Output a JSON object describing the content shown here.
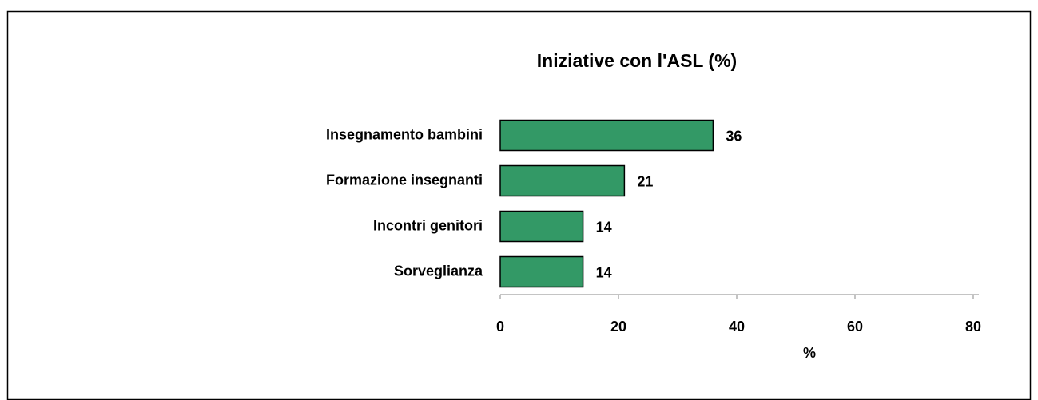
{
  "chart_data": {
    "type": "bar",
    "orientation": "horizontal",
    "title": "Iniziative con l'ASL (%)",
    "categories": [
      "Insegnamento bambini",
      "Formazione insegnanti",
      "Incontri genitori",
      "Sorveglianza"
    ],
    "values": [
      36,
      21,
      14,
      14
    ],
    "color": "#339966",
    "xlim": [
      0,
      80
    ],
    "xticks": [
      0,
      20,
      40,
      60,
      80
    ],
    "xlabel": "%",
    "grid": false
  }
}
